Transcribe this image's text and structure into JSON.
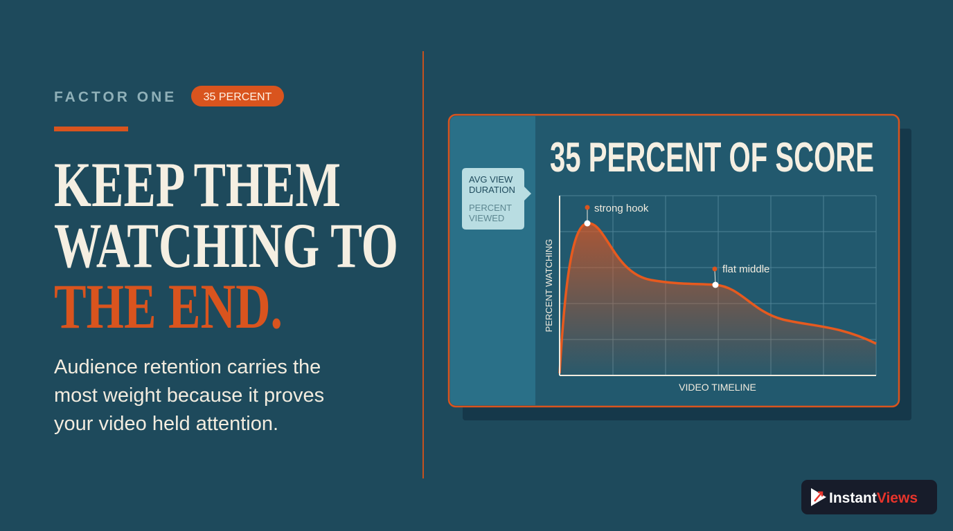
{
  "header": {
    "eyebrow": "FACTOR ONE",
    "badge": "35 PERCENT"
  },
  "headline": {
    "lines": [
      "KEEP THEM",
      "WATCHING TO",
      "THE END."
    ]
  },
  "body": {
    "lines": [
      "Audience retention carries the",
      "most weight because it proves",
      "your video held attention."
    ]
  },
  "card": {
    "title": "35 PERCENT OF SCORE",
    "legend": {
      "primary": [
        "AVG VIEW",
        "DURATION"
      ],
      "secondary": [
        "PERCENT",
        "VIEWED"
      ]
    },
    "y_label": "PERCENT WATCHING",
    "x_label": "VIDEO TIMELINE",
    "annotations": [
      "strong hook",
      "flat middle"
    ]
  },
  "brand": {
    "name_part1": "Instant",
    "name_part2": "Views"
  }
}
